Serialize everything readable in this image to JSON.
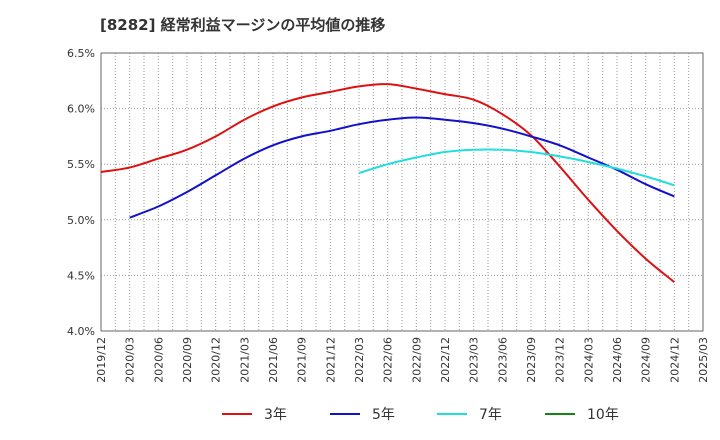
{
  "chart_data": {
    "type": "line",
    "title": "[8282]  経常利益マージンの平均値の推移",
    "xlabel": "",
    "ylabel": "",
    "ylim": [
      4.0,
      6.5
    ],
    "y_ticks": [
      "4.0%",
      "4.5%",
      "5.0%",
      "5.5%",
      "6.0%",
      "6.5%"
    ],
    "y_tick_values": [
      4.0,
      4.5,
      5.0,
      5.5,
      6.0,
      6.5
    ],
    "x_ticks": [
      "2019/12",
      "2020/03",
      "2020/06",
      "2020/09",
      "2020/12",
      "2021/03",
      "2021/06",
      "2021/09",
      "2021/12",
      "2022/03",
      "2022/06",
      "2022/09",
      "2022/12",
      "2023/03",
      "2023/06",
      "2023/09",
      "2023/12",
      "2024/03",
      "2024/06",
      "2024/09",
      "2024/12",
      "2025/03"
    ],
    "grid": true,
    "legend_position": "bottom",
    "series": [
      {
        "name": "3年",
        "color": "#dd1111",
        "x": [
          "2019/12",
          "2020/03",
          "2020/06",
          "2020/09",
          "2020/12",
          "2021/03",
          "2021/06",
          "2021/09",
          "2021/12",
          "2022/03",
          "2022/06",
          "2022/09",
          "2022/12",
          "2023/03",
          "2023/06",
          "2023/09",
          "2023/12",
          "2024/03",
          "2024/06",
          "2024/09",
          "2024/12"
        ],
        "values": [
          5.43,
          5.47,
          5.55,
          5.63,
          5.75,
          5.9,
          6.02,
          6.1,
          6.15,
          6.2,
          6.22,
          6.18,
          6.13,
          6.08,
          5.95,
          5.76,
          5.48,
          5.18,
          4.9,
          4.65,
          4.44
        ]
      },
      {
        "name": "5年",
        "color": "#1111cc",
        "x": [
          "2020/03",
          "2020/06",
          "2020/09",
          "2020/12",
          "2021/03",
          "2021/06",
          "2021/09",
          "2021/12",
          "2022/03",
          "2022/06",
          "2022/09",
          "2022/12",
          "2023/03",
          "2023/06",
          "2023/09",
          "2023/12",
          "2024/03",
          "2024/06",
          "2024/09",
          "2024/12"
        ],
        "values": [
          5.02,
          5.12,
          5.25,
          5.4,
          5.55,
          5.67,
          5.75,
          5.8,
          5.86,
          5.9,
          5.92,
          5.9,
          5.87,
          5.82,
          5.75,
          5.67,
          5.56,
          5.45,
          5.32,
          5.21
        ]
      },
      {
        "name": "7年",
        "color": "#22dddd",
        "x": [
          "2022/03",
          "2022/06",
          "2022/09",
          "2022/12",
          "2023/03",
          "2023/06",
          "2023/09",
          "2023/12",
          "2024/03",
          "2024/06",
          "2024/09",
          "2024/12"
        ],
        "values": [
          5.42,
          5.5,
          5.56,
          5.61,
          5.63,
          5.63,
          5.61,
          5.57,
          5.52,
          5.46,
          5.39,
          5.31
        ]
      },
      {
        "name": "10年",
        "color": "#118811",
        "x": [],
        "values": []
      }
    ]
  }
}
